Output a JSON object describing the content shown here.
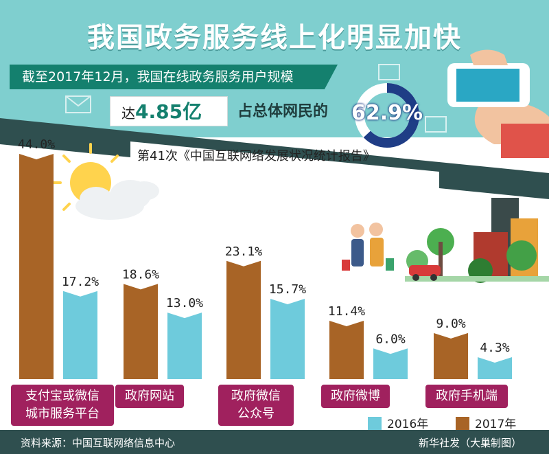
{
  "title": "我国政务服务线上化明显加快",
  "headline": {
    "ribbon_text": "截至2017年12月，我国在线政务服务用户规模",
    "users_prefix": "达",
    "users_value": "4.85亿",
    "share_label": "占总体网民的",
    "share_value": "62.9%",
    "share_fraction": 0.629
  },
  "report_title": "第41次《中国互联网络发展状况统计报告》",
  "source": "资料来源：中国互联网络信息中心",
  "credit": "新华社发（大巢制图）",
  "colors": {
    "band_top": "#7fcfcf",
    "band_dark": "#2f4f4f",
    "bar_2016": "#6ecbdc",
    "bar_2017": "#a86426",
    "label_bg": "#a0215e",
    "accent": "#14806e",
    "donut_ring": "#1f3d86"
  },
  "chart_data": {
    "type": "bar",
    "categories": [
      "支付宝或微信城市服务平台",
      "政府网站",
      "政府微信公众号",
      "政府微博",
      "政府手机端"
    ],
    "category_display": [
      [
        "支付宝或微信",
        "城市服务平台"
      ],
      [
        "政府网站"
      ],
      [
        "政府微信",
        "公众号"
      ],
      [
        "政府微博"
      ],
      [
        "政府手机端"
      ]
    ],
    "series": [
      {
        "name": "2017年",
        "values": [
          44.0,
          18.6,
          23.1,
          11.4,
          9.0
        ],
        "labels": [
          "44.0%",
          "18.6%",
          "23.1%",
          "11.4%",
          "9.0%"
        ]
      },
      {
        "name": "2016年",
        "values": [
          17.2,
          13.0,
          15.7,
          6.0,
          4.3
        ],
        "labels": [
          "17.2%",
          "13.0%",
          "15.7%",
          "6.0%",
          "4.3%"
        ]
      }
    ],
    "unit": "%",
    "ylim": [
      0,
      46
    ],
    "legend_position": "bottom-right"
  }
}
